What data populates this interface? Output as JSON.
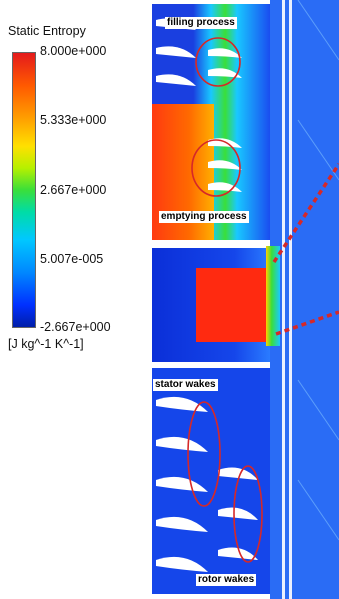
{
  "legend": {
    "title": "Static Entropy",
    "ticks": [
      "8.000e+000",
      "5.333e+000",
      "2.667e+000",
      "5.007e-005",
      "-2.667e+000"
    ],
    "unit": "[J kg^-1 K^-1]"
  },
  "annotations": {
    "filling": "filling process",
    "emptying": "emptying process",
    "stator": "stator wakes",
    "rotor": "rotor wakes"
  },
  "colors": {
    "high": "#e41a1c",
    "low": "#0022cc",
    "marker": "#d62828"
  }
}
